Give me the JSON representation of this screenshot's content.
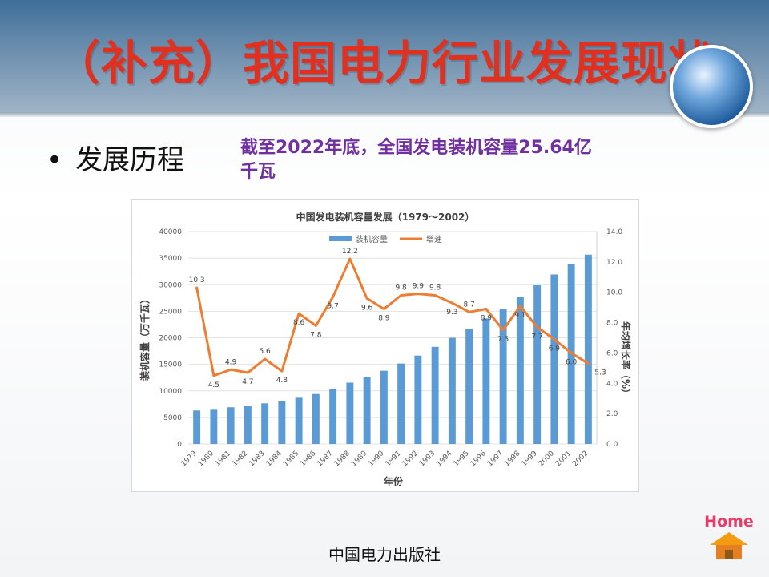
{
  "slide": {
    "title": "（补充）我国电力行业发展现状",
    "bullet": "发展历程",
    "note": "截至2022年底，全国发电装机容量25.64亿千瓦",
    "footer": "中国电力出版社",
    "home_label": "Home"
  },
  "colors": {
    "title": "#e03020",
    "note": "#7030a0",
    "bar": "#5b9bd5",
    "line": "#ed7d31"
  },
  "icons": {
    "globe": "globe-icon",
    "home": "home-icon"
  },
  "chart_data": {
    "type": "bar",
    "title": "中国发电装机容量发展（1979～2002）",
    "categories": [
      "1979",
      "1980",
      "1981",
      "1982",
      "1983",
      "1984",
      "1985",
      "1986",
      "1987",
      "1988",
      "1989",
      "1990",
      "1991",
      "1992",
      "1993",
      "1994",
      "1995",
      "1996",
      "1997",
      "1998",
      "1999",
      "2000",
      "2001",
      "2002"
    ],
    "xlabel": "年份",
    "ylabel": "装机容量（万千瓦）",
    "y2label": "年均增长率（%）",
    "ylim": [
      0,
      40000
    ],
    "y2lim": [
      0,
      14
    ],
    "yticks": [
      "0",
      "5000",
      "10000",
      "15000",
      "20000",
      "25000",
      "30000",
      "35000",
      "40000"
    ],
    "y2ticks": [
      "0.0",
      "2.0",
      "4.0",
      "6.0",
      "8.0",
      "10.0",
      "12.0",
      "14.0"
    ],
    "legend_position": "top",
    "series": [
      {
        "name": "装机容量",
        "type": "bar",
        "values": [
          6300,
          6590,
          6910,
          7240,
          7650,
          8010,
          8700,
          9400,
          10300,
          11550,
          12660,
          13790,
          15150,
          16650,
          18290,
          19990,
          21720,
          23650,
          25420,
          27730,
          29880,
          31930,
          33850,
          35660
        ]
      },
      {
        "name": "增速",
        "type": "line",
        "axis": "right",
        "values": [
          10.3,
          4.5,
          4.9,
          4.7,
          5.6,
          4.8,
          8.6,
          7.8,
          9.7,
          12.2,
          9.6,
          8.9,
          9.8,
          9.9,
          9.8,
          9.3,
          8.7,
          8.9,
          7.5,
          9.1,
          7.7,
          6.9,
          6.0,
          5.3
        ],
        "labels": [
          "10.3",
          "4.5",
          "4.9",
          "4.7",
          "5.6",
          "4.8",
          "8.6",
          "7.8",
          "9.7",
          "12.2",
          "9.6",
          "8.9",
          "9.8",
          "9.9",
          "9.8",
          "9.3",
          "8.7",
          "8.9",
          "7.5",
          "9.1",
          "7.7",
          "6.9",
          "6.0",
          "5.3"
        ]
      }
    ],
    "grid": true
  }
}
